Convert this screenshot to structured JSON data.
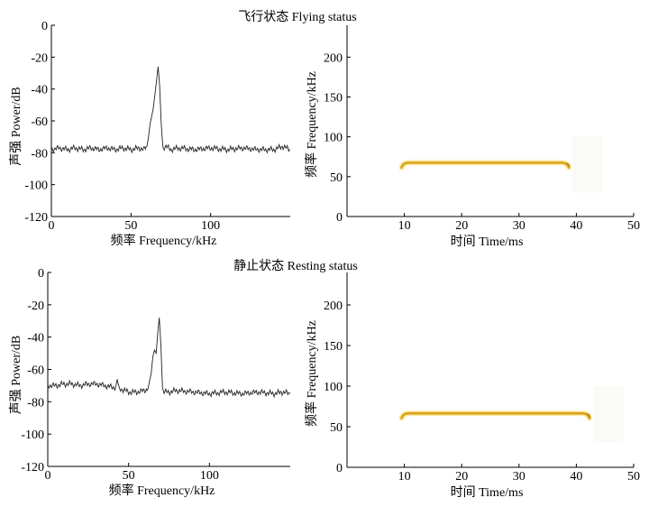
{
  "figure": {
    "panel_titles": [
      "飞行状态 Flying status",
      "静止状态 Resting status"
    ]
  },
  "colors": {
    "axis": "#000000",
    "spectrum_line": "#222222",
    "call_core": "#d8a21a",
    "call_halo": "#fbe9a6",
    "call_edge": "#c8861a",
    "background": "#ffffff"
  },
  "chart_data": [
    {
      "type": "line",
      "title": "飞行状态 Flying status",
      "xlabel": "频率 Frequency/kHz",
      "ylabel": "声强 Power/dB",
      "xlim": [
        0,
        150
      ],
      "ylim": [
        -120,
        0
      ],
      "xticks": [
        0,
        50,
        100
      ],
      "yticks": [
        0,
        -20,
        -40,
        -60,
        -80,
        -100,
        -120
      ],
      "series": [
        {
          "name": "power spectrum",
          "x": [
            0,
            5,
            10,
            15,
            20,
            25,
            30,
            35,
            40,
            45,
            50,
            55,
            58,
            60,
            61,
            62,
            63,
            64,
            65,
            66,
            67,
            68,
            69,
            70,
            72,
            75,
            80,
            90,
            100,
            110,
            120,
            130,
            140,
            145,
            150
          ],
          "y": [
            -78,
            -77,
            -78,
            -77,
            -78,
            -77,
            -78,
            -77,
            -78,
            -77,
            -78,
            -77,
            -78,
            -76,
            -70,
            -62,
            -57,
            -52,
            -44,
            -35,
            -26,
            -38,
            -62,
            -77,
            -76,
            -78,
            -77,
            -78,
            -77,
            -78,
            -77,
            -78,
            -78,
            -76,
            -78
          ]
        }
      ]
    },
    {
      "type": "heatmap",
      "xlabel": "时间 Time/ms",
      "ylabel": "频率 Frequency/kHz",
      "xlim": [
        0,
        50
      ],
      "ylim": [
        0,
        240
      ],
      "xticks": [
        10,
        20,
        30,
        40,
        50
      ],
      "yticks": [
        0,
        50,
        100,
        150,
        200
      ],
      "call": {
        "start_ms": 9.5,
        "end_ms": 38.7,
        "cf_khz": 67.5,
        "fm_drop_khz": 6
      }
    },
    {
      "type": "line",
      "title": "静止状态 Resting status",
      "xlabel": "频率 Frequency/kHz",
      "ylabel": "声强 Power/dB",
      "xlim": [
        0,
        150
      ],
      "ylim": [
        -120,
        0
      ],
      "xticks": [
        0,
        50,
        100
      ],
      "yticks": [
        0,
        -20,
        -40,
        -60,
        -80,
        -100,
        -120
      ],
      "series": [
        {
          "name": "power spectrum",
          "x": [
            0,
            5,
            10,
            15,
            20,
            25,
            30,
            35,
            40,
            42,
            43,
            44,
            45,
            50,
            55,
            60,
            62,
            64,
            65,
            66,
            67,
            68,
            69,
            70,
            71,
            72,
            75,
            80,
            90,
            100,
            110,
            120,
            130,
            140,
            145,
            150
          ],
          "y": [
            -70,
            -70,
            -69,
            -69,
            -70,
            -69,
            -69,
            -70,
            -71,
            -71,
            -66,
            -72,
            -72,
            -74,
            -74,
            -73,
            -72,
            -62,
            -52,
            -48,
            -50,
            -38,
            -28,
            -45,
            -72,
            -74,
            -74,
            -73,
            -74,
            -75,
            -74,
            -75,
            -74,
            -75,
            -74,
            -75
          ]
        }
      ]
    },
    {
      "type": "heatmap",
      "xlabel": "时间 Time/ms",
      "ylabel": "频率 Frequency/kHz",
      "xlim": [
        0,
        50
      ],
      "ylim": [
        0,
        240
      ],
      "xticks": [
        10,
        20,
        30,
        40,
        50
      ],
      "yticks": [
        0,
        50,
        100,
        150,
        200
      ],
      "call": {
        "start_ms": 9.5,
        "end_ms": 42.3,
        "cf_khz": 66.5,
        "fm_drop_khz": 6
      }
    }
  ]
}
